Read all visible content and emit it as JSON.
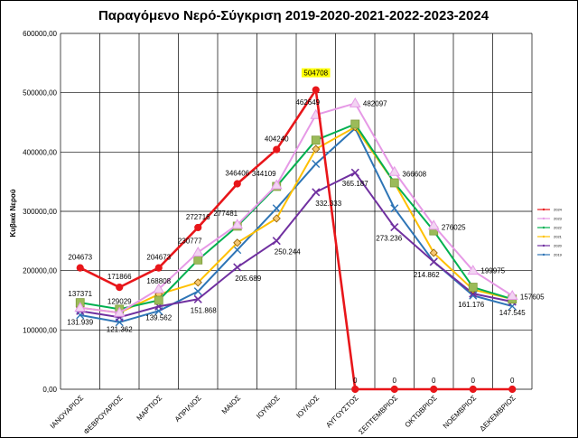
{
  "chart_data": {
    "type": "line",
    "title": "Παραγόμενο Νερό-Σύγκριση 2019-2020-2021-2022-2023-2024",
    "ylabel": "Κυβικά Νερού",
    "xlabel": "",
    "ylim": [
      0,
      600000
    ],
    "yticks": [
      0,
      100000,
      200000,
      300000,
      400000,
      500000,
      600000
    ],
    "ytick_labels": [
      "0,00",
      "100000,00",
      "200000,00",
      "300000,00",
      "400000,00",
      "500000,00",
      "600000,00"
    ],
    "grid": true,
    "legend_position": "right",
    "categories": [
      "ΙΑΝΟΥΑΡΙΟΣ",
      "ΦΕΒΡΟΥΑΡΙΟΣ",
      "ΜΑΡΤΙΟΣ",
      "ΑΠΡΙΛΙΟΣ",
      "ΜΑΙΟΣ",
      "ΙΟΥΝΙΟΣ",
      "ΙΟΥΛΙΟΣ",
      "ΑΥΓΟΥΣΤΟΣ",
      "ΣΕΠΤΕΜΒΡΙΟΣ",
      "ΟΚΤΩΒΡΙΟΣ",
      "ΝΟΕΜΒΡΙΟΣ",
      "ΔΕΚΕΜΒΡΙΟΣ"
    ],
    "series": [
      {
        "name": "2019",
        "color": "#2e75b6",
        "marker": "cross",
        "values": [
          125000,
          113000,
          132000,
          165000,
          235000,
          305000,
          380000,
          440000,
          305000,
          215000,
          158000,
          140000
        ]
      },
      {
        "name": "2020",
        "color": "#7030a0",
        "marker": "x",
        "values": [
          131939,
          121362,
          139562,
          151868,
          205689,
          250244,
          332333,
          365187,
          273236,
          214862,
          161176,
          147545
        ],
        "labels": [
          "131.939",
          "121.362",
          "139.562",
          "151.868",
          "205.689",
          "250.244",
          "332.333",
          "365.187",
          "273.236",
          "214.862",
          "161.176",
          "147.545"
        ]
      },
      {
        "name": "2021",
        "color": "#ffc000",
        "marker": "diamond",
        "values": [
          137371,
          129029,
          160000,
          180000,
          247000,
          288000,
          405000,
          442000,
          348000,
          230000,
          168000,
          152000
        ]
      },
      {
        "name": "2022",
        "color": "#00b050",
        "marker": "square",
        "values": [
          146000,
          135000,
          150000,
          218000,
          275000,
          342000,
          420000,
          447000,
          348000,
          267000,
          172000,
          152000
        ]
      },
      {
        "name": "2023",
        "color": "#e699e6",
        "marker": "triangle",
        "values": [
          137371,
          129029,
          168808,
          230777,
          277481,
          344109,
          462649,
          482097,
          366608,
          276025,
          199975,
          157605
        ],
        "labels": [
          "137371",
          "129029",
          "168808",
          "230777",
          "277481",
          "344109",
          "462649",
          "482097",
          "366608",
          "276025",
          "199975",
          "157605"
        ]
      },
      {
        "name": "2024",
        "color": "#e8161a",
        "marker": "circle",
        "values": [
          204673,
          171866,
          204673,
          272716,
          346406,
          404240,
          504708,
          0,
          0,
          0,
          0,
          0
        ],
        "labels": [
          "204673",
          "171866",
          "204673",
          "272716",
          "346406",
          "404240",
          "504708",
          "0",
          "0",
          "0",
          "0",
          "0"
        ],
        "highlight_label": "504708",
        "highlight_color": "#ffff00"
      }
    ]
  }
}
